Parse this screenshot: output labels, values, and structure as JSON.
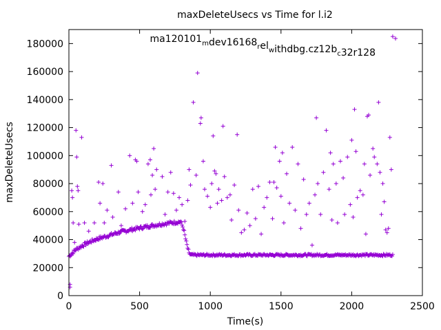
{
  "chart_data": {
    "type": "scatter",
    "title": "maxDeleteUsecs vs Time for l.i2",
    "xlabel": "Time(s)",
    "ylabel": "maxDeleteUsecs",
    "xlim": [
      0,
      2500
    ],
    "ylim": [
      0,
      190000
    ],
    "xticks": [
      0,
      500,
      1000,
      1500,
      2000,
      2500
    ],
    "yticks": [
      0,
      20000,
      40000,
      60000,
      80000,
      100000,
      120000,
      140000,
      160000,
      180000
    ],
    "xtick_labels": [
      "0",
      "500",
      "1000",
      "1500",
      "2000",
      "2500"
    ],
    "ytick_labels": [
      "0",
      "20000",
      "40000",
      "60000",
      "80000",
      "100000",
      "120000",
      "140000",
      "160000",
      "180000"
    ],
    "grid": false,
    "legend_position": "top-right",
    "color": "#9400d3",
    "legend": {
      "parts": [
        {
          "text": "ma120101",
          "sub": false
        },
        {
          "text": "m",
          "sub": true
        },
        {
          "text": "dev16168",
          "sub": false
        },
        {
          "text": "r",
          "sub": true
        },
        {
          "text": "el",
          "sub": false
        },
        {
          "text": "w",
          "sub": true
        },
        {
          "text": "ithdbg.cz12b",
          "sub": false
        },
        {
          "text": "c",
          "sub": true
        },
        {
          "text": "32r128",
          "sub": false
        }
      ]
    },
    "series": [
      {
        "name": "ma120101_mdev16168_rel_withdbg.cz12b_c32r128",
        "baseline": [
          [
            0,
            28000
          ],
          [
            50,
            33000
          ],
          [
            100,
            36000
          ],
          [
            150,
            38500
          ],
          [
            200,
            40500
          ],
          [
            250,
            42000
          ],
          [
            300,
            43500
          ],
          [
            350,
            45000
          ],
          [
            400,
            46200
          ],
          [
            450,
            47300
          ],
          [
            500,
            48300
          ],
          [
            550,
            49300
          ],
          [
            600,
            50200
          ],
          [
            650,
            51000
          ],
          [
            700,
            51700
          ],
          [
            750,
            52300
          ],
          [
            790,
            52800
          ],
          [
            810,
            48000
          ],
          [
            830,
            38000
          ],
          [
            850,
            30000
          ],
          [
            870,
            29000
          ],
          [
            2290,
            29000
          ]
        ],
        "outliers": [
          [
            8,
            6000
          ],
          [
            8,
            8000
          ],
          [
            20,
            75000
          ],
          [
            25,
            70000
          ],
          [
            30,
            52000
          ],
          [
            40,
            38000
          ],
          [
            50,
            118000
          ],
          [
            55,
            99000
          ],
          [
            60,
            78000
          ],
          [
            65,
            75000
          ],
          [
            70,
            51000
          ],
          [
            90,
            113000
          ],
          [
            110,
            52000
          ],
          [
            140,
            46000
          ],
          [
            180,
            52000
          ],
          [
            210,
            81000
          ],
          [
            220,
            66000
          ],
          [
            240,
            80000
          ],
          [
            250,
            52000
          ],
          [
            270,
            61000
          ],
          [
            300,
            93000
          ],
          [
            310,
            56000
          ],
          [
            330,
            45000
          ],
          [
            350,
            74000
          ],
          [
            370,
            50000
          ],
          [
            400,
            62000
          ],
          [
            430,
            100000
          ],
          [
            450,
            66000
          ],
          [
            470,
            97000
          ],
          [
            480,
            96000
          ],
          [
            490,
            74000
          ],
          [
            520,
            60000
          ],
          [
            540,
            65000
          ],
          [
            560,
            94000
          ],
          [
            575,
            97000
          ],
          [
            580,
            72000
          ],
          [
            590,
            86000
          ],
          [
            600,
            105000
          ],
          [
            610,
            76000
          ],
          [
            620,
            90000
          ],
          [
            660,
            85000
          ],
          [
            680,
            58000
          ],
          [
            700,
            74000
          ],
          [
            720,
            88000
          ],
          [
            740,
            73000
          ],
          [
            760,
            61000
          ],
          [
            780,
            70000
          ],
          [
            800,
            65000
          ],
          [
            820,
            53000
          ],
          [
            840,
            68000
          ],
          [
            850,
            90000
          ],
          [
            860,
            79000
          ],
          [
            880,
            138000
          ],
          [
            900,
            86000
          ],
          [
            910,
            159000
          ],
          [
            930,
            123000
          ],
          [
            935,
            127000
          ],
          [
            950,
            96000
          ],
          [
            960,
            76000
          ],
          [
            980,
            71000
          ],
          [
            1000,
            63000
          ],
          [
            1010,
            80000
          ],
          [
            1020,
            114000
          ],
          [
            1030,
            89000
          ],
          [
            1040,
            87000
          ],
          [
            1050,
            66000
          ],
          [
            1060,
            76000
          ],
          [
            1080,
            68000
          ],
          [
            1090,
            121000
          ],
          [
            1100,
            85000
          ],
          [
            1120,
            70000
          ],
          [
            1140,
            72000
          ],
          [
            1150,
            54000
          ],
          [
            1170,
            79000
          ],
          [
            1190,
            115000
          ],
          [
            1200,
            61000
          ],
          [
            1220,
            45000
          ],
          [
            1240,
            47000
          ],
          [
            1260,
            59000
          ],
          [
            1280,
            50000
          ],
          [
            1300,
            76000
          ],
          [
            1320,
            55000
          ],
          [
            1340,
            78000
          ],
          [
            1360,
            44000
          ],
          [
            1380,
            63000
          ],
          [
            1400,
            70000
          ],
          [
            1420,
            81000
          ],
          [
            1440,
            55000
          ],
          [
            1450,
            81000
          ],
          [
            1460,
            106000
          ],
          [
            1470,
            77000
          ],
          [
            1490,
            96000
          ],
          [
            1500,
            71000
          ],
          [
            1510,
            102000
          ],
          [
            1520,
            52000
          ],
          [
            1540,
            87000
          ],
          [
            1560,
            66000
          ],
          [
            1580,
            106000
          ],
          [
            1600,
            61000
          ],
          [
            1620,
            94000
          ],
          [
            1640,
            48000
          ],
          [
            1660,
            83000
          ],
          [
            1680,
            58000
          ],
          [
            1700,
            66000
          ],
          [
            1720,
            36000
          ],
          [
            1740,
            72000
          ],
          [
            1750,
            127000
          ],
          [
            1760,
            80000
          ],
          [
            1780,
            58000
          ],
          [
            1800,
            88000
          ],
          [
            1820,
            118000
          ],
          [
            1840,
            76000
          ],
          [
            1850,
            102000
          ],
          [
            1860,
            54000
          ],
          [
            1870,
            94000
          ],
          [
            1890,
            80000
          ],
          [
            1900,
            52000
          ],
          [
            1920,
            96000
          ],
          [
            1940,
            84000
          ],
          [
            1950,
            58000
          ],
          [
            1970,
            99000
          ],
          [
            1990,
            65000
          ],
          [
            2000,
            111000
          ],
          [
            2010,
            56000
          ],
          [
            2020,
            133000
          ],
          [
            2030,
            103000
          ],
          [
            2040,
            70000
          ],
          [
            2060,
            75000
          ],
          [
            2080,
            72000
          ],
          [
            2090,
            94000
          ],
          [
            2100,
            44000
          ],
          [
            2110,
            128000
          ],
          [
            2120,
            129000
          ],
          [
            2130,
            86000
          ],
          [
            2150,
            105000
          ],
          [
            2160,
            99000
          ],
          [
            2180,
            94000
          ],
          [
            2190,
            138000
          ],
          [
            2200,
            88000
          ],
          [
            2210,
            58000
          ],
          [
            2220,
            80000
          ],
          [
            2230,
            67000
          ],
          [
            2240,
            47000
          ],
          [
            2250,
            45000
          ],
          [
            2260,
            48000
          ],
          [
            2270,
            113000
          ],
          [
            2280,
            90000
          ],
          [
            2290,
            185000
          ]
        ]
      }
    ]
  }
}
